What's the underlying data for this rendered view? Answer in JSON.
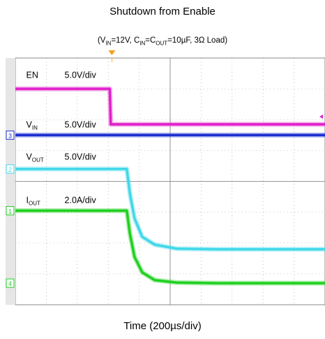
{
  "chart_data": {
    "type": "line",
    "title": "Shutdown from Enable",
    "subtitle": {
      "prefix": "(V",
      "sub1": "IN",
      "mid1": "=12V, C",
      "sub2": "IN",
      "mid2": "=C",
      "sub3": "OUT",
      "suffix": "=10µF, 3Ω Load)"
    },
    "xlabel": "Time (200µs/div)",
    "ylabel": "",
    "grid": true,
    "xlim": [
      0,
      10
    ],
    "ylim": [
      0,
      8
    ],
    "x_unit": "div",
    "y_unit": "div",
    "trigger_marker": "T",
    "series": [
      {
        "name": "EN",
        "name_sub": "",
        "scale": "5.0V/div",
        "channel_marker": "",
        "color": "#e020c8",
        "points": [
          [
            0,
            7.0
          ],
          [
            3.05,
            7.0
          ],
          [
            3.08,
            5.85
          ],
          [
            5.0,
            5.85
          ],
          [
            10,
            5.85
          ]
        ]
      },
      {
        "name": "V",
        "name_sub": "IN",
        "scale": "5.0V/div",
        "channel_marker": "3",
        "color": "#1c2fd0",
        "points": [
          [
            0,
            5.5
          ],
          [
            10,
            5.5
          ]
        ]
      },
      {
        "name": "V",
        "name_sub": "OUT",
        "scale": "5.0V/div",
        "channel_marker": "2",
        "color": "#40d8e8",
        "points": [
          [
            0,
            4.4
          ],
          [
            3.6,
            4.4
          ],
          [
            3.7,
            3.6
          ],
          [
            3.85,
            2.8
          ],
          [
            4.1,
            2.2
          ],
          [
            4.5,
            1.95
          ],
          [
            5.2,
            1.82
          ],
          [
            6.5,
            1.8
          ],
          [
            10,
            1.8
          ]
        ]
      },
      {
        "name": "I",
        "name_sub": "OUT",
        "scale": "2.0A/div",
        "channel_marker": "1",
        "color": "#20d020",
        "points": [
          [
            0,
            3.05
          ],
          [
            3.6,
            3.05
          ],
          [
            3.7,
            2.3
          ],
          [
            3.85,
            1.55
          ],
          [
            4.1,
            1.05
          ],
          [
            4.5,
            0.8
          ],
          [
            5.2,
            0.72
          ],
          [
            6.5,
            0.7
          ],
          [
            10,
            0.7
          ]
        ]
      }
    ],
    "channel_markers_extra": [
      {
        "label": "4",
        "color": "#20d020",
        "y": 0.7
      }
    ]
  }
}
